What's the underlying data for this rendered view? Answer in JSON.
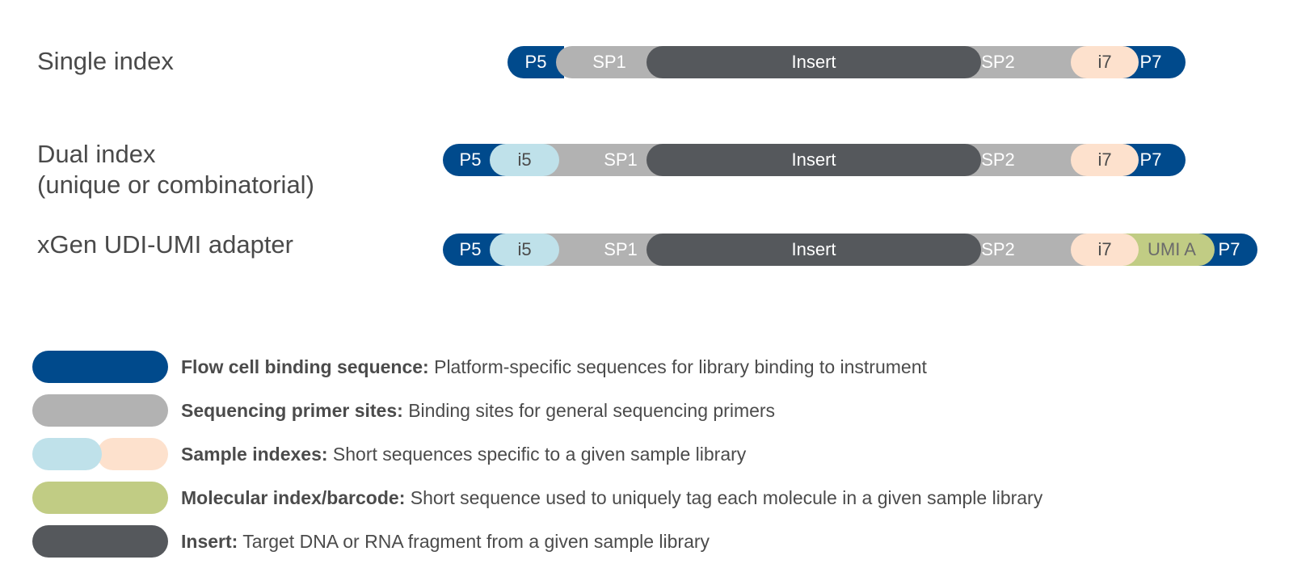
{
  "rows": [
    {
      "label_lines": [
        "Single index"
      ],
      "segments": {
        "p5": "P5",
        "sp1": "SP1",
        "insert": "Insert",
        "sp2": "SP2",
        "i7": "i7",
        "p7": "P7"
      }
    },
    {
      "label_lines": [
        "Dual index",
        "(unique or combinatorial)"
      ],
      "segments": {
        "p5": "P5",
        "i5": "i5",
        "sp1": "SP1",
        "insert": "Insert",
        "sp2": "SP2",
        "i7": "i7",
        "p7": "P7"
      }
    },
    {
      "label_lines": [
        "xGen UDI-UMI adapter"
      ],
      "segments": {
        "p5": "P5",
        "i5": "i5",
        "sp1": "SP1",
        "insert": "Insert",
        "sp2": "SP2",
        "i7": "i7",
        "umi": "UMI A",
        "p7": "P7"
      }
    }
  ],
  "legend": [
    {
      "title": "Flow cell binding sequence:",
      "desc": " Platform-specific sequences for library binding to instrument",
      "color": "#004a8c"
    },
    {
      "title": "Sequencing primer sites:",
      "desc": " Binding sites for general sequencing primers",
      "color": "#b2b2b2"
    },
    {
      "title": "Sample indexes:",
      "desc": " Short sequences specific to a given sample library",
      "colors": [
        "#bfe1ea",
        "#fde1cd"
      ]
    },
    {
      "title": "Molecular index/barcode:",
      "desc": " Short sequence used to uniquely tag each molecule in a given sample library",
      "color": "#c1cc84"
    },
    {
      "title": "Insert:",
      "desc": " Target DNA or RNA fragment from a given sample library",
      "color": "#55585c"
    }
  ]
}
